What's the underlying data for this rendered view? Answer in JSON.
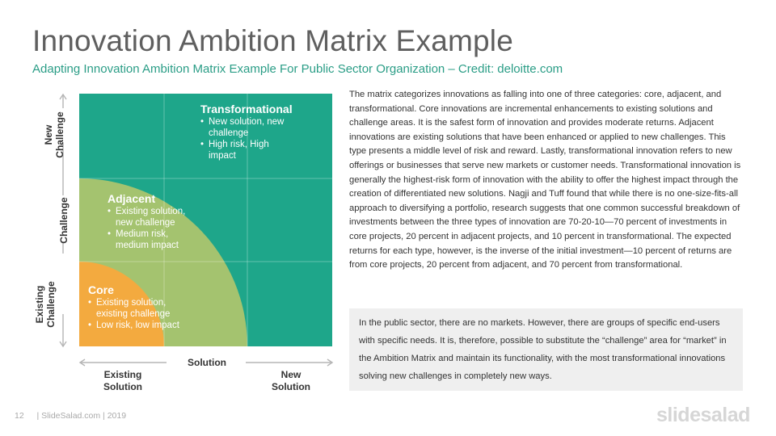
{
  "slide": {
    "title": "Innovation Ambition Matrix Example",
    "subtitle": "Adapting Innovation Ambition Matrix Example For Public Sector Organization – Credit: deloitte.com"
  },
  "matrix": {
    "y_axis": {
      "top": [
        "New",
        "Challenge"
      ],
      "middle": "Challenge",
      "bottom": [
        "Existing",
        "Challenge"
      ]
    },
    "x_axis": {
      "left": [
        "Existing",
        "Solution"
      ],
      "middle": "Solution",
      "right": [
        "New",
        "Solution"
      ]
    },
    "quadrants": {
      "transformational": {
        "title": "Transformational",
        "bullets": [
          "New solution, new challenge",
          "High risk, High impact"
        ]
      },
      "adjacent": {
        "title": "Adjacent",
        "bullets": [
          "Existing solution, new challenge",
          "Medium risk, medium impact"
        ]
      },
      "core": {
        "title": "Core",
        "bullets": [
          "Existing solution, existing challenge",
          "Low risk, low impact"
        ]
      }
    },
    "colors": {
      "transformational": "#1ea68a",
      "adjacent": "#a4c36f",
      "core": "#f3aa3f"
    }
  },
  "description": "The matrix categorizes innovations as falling into one of three categories: core, adjacent, and transformational. Core innovations are incremental enhancements to existing solutions and challenge areas. It is the safest form of innovation and provides moderate returns. Adjacent innovations are existing solutions that have been enhanced or applied to new challenges. This type presents a middle level of risk and reward. Lastly, transformational innovation refers to new offerings or businesses that serve new markets or customer needs. Transformational innovation is generally the highest-risk form of innovation with the ability to offer the highest impact through the creation of differentiated new solutions. Nagji and Tuff found that while there is no one-size-fits-all approach to diversifying a portfolio, research suggests that one common successful breakdown of investments between the three types of innovation are 70-20-10—70 percent of investments in core projects, 20 percent in adjacent projects, and 10 percent in transformational. The expected returns for each type, however, is the inverse of the initial investment—10 percent of returns are from core projects, 20 percent from adjacent, and 70 percent from transformational.",
  "note": "In the public sector, there are no markets. However, there are groups of specific end-users with specific needs. It is, therefore, possible to substitute the “challenge” area for “market” in the Ambition Matrix and maintain its functionality, with the most transformational innovations solving new challenges in completely new ways.",
  "footer": {
    "page_number": "12",
    "credit": "| SlideSalad.com | 2019",
    "brand": "slidesalad"
  }
}
